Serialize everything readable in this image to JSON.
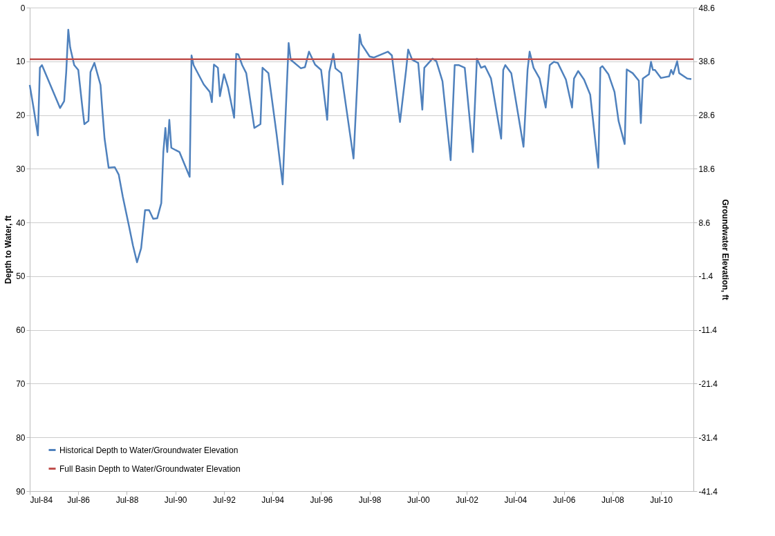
{
  "chart_data": {
    "type": "line",
    "xlabel": null,
    "ylabel": "Depth to Water, ft",
    "y2label": "Groundwater Elevation, ft",
    "xlim": [
      "1984-07",
      "2011-11"
    ],
    "xticks": [
      {
        "value": "1984-07",
        "label": "Jul-84"
      },
      {
        "value": "1986-07",
        "label": "Jul-86"
      },
      {
        "value": "1988-07",
        "label": "Jul-88"
      },
      {
        "value": "1990-07",
        "label": "Jul-90"
      },
      {
        "value": "1992-07",
        "label": "Jul-92"
      },
      {
        "value": "1994-07",
        "label": "Jul-94"
      },
      {
        "value": "1996-07",
        "label": "Jul-96"
      },
      {
        "value": "1998-07",
        "label": "Jul-98"
      },
      {
        "value": "2000-07",
        "label": "Jul-00"
      },
      {
        "value": "2002-07",
        "label": "Jul-02"
      },
      {
        "value": "2004-07",
        "label": "Jul-04"
      },
      {
        "value": "2006-07",
        "label": "Jul-06"
      },
      {
        "value": "2008-07",
        "label": "Jul-08"
      },
      {
        "value": "2010-07",
        "label": "Jul-10"
      }
    ],
    "ylim": [
      90,
      0
    ],
    "yticks": [
      0,
      10,
      20,
      30,
      40,
      50,
      60,
      70,
      80,
      90
    ],
    "y2lim": [
      -41.4,
      48.6
    ],
    "y2ticks": [
      48.6,
      38.6,
      28.6,
      18.6,
      8.6,
      -1.4,
      -11.4,
      -21.4,
      -31.4,
      -41.4
    ],
    "grid": "y",
    "legend": "bottom left",
    "marker": "none",
    "line_style": "solid",
    "series": [
      {
        "name": "Historical Depth to Water/Groundwater Elevation",
        "color": "#4f81bd",
        "x": [
          "1984-07",
          "1984-09",
          "1984-11",
          "1984-12",
          "1985-01",
          "1985-10",
          "1985-12",
          "1986-01",
          "1986-02",
          "1986-03",
          "1986-05",
          "1986-07",
          "1986-09",
          "1986-10",
          "1986-12",
          "1987-01",
          "1987-03",
          "1987-06",
          "1987-07",
          "1987-08",
          "1987-10",
          "1988-01",
          "1988-03",
          "1988-05",
          "1988-08",
          "1988-10",
          "1988-12",
          "1989-02",
          "1989-04",
          "1989-06",
          "1989-08",
          "1989-10",
          "1989-12",
          "1990-01",
          "1990-02",
          "1990-03",
          "1990-04",
          "1990-05",
          "1990-09",
          "1991-02",
          "1991-03",
          "1991-04",
          "1991-09",
          "1991-12",
          "1992-01",
          "1992-02",
          "1992-04",
          "1992-05",
          "1992-07",
          "1992-09",
          "1992-12",
          "1993-01",
          "1993-02",
          "1993-04",
          "1993-06",
          "1993-10",
          "1994-01",
          "1994-02",
          "1994-05",
          "1994-09",
          "1994-12",
          "1995-03",
          "1995-04",
          "1995-09",
          "1995-11",
          "1996-01",
          "1996-04",
          "1996-07",
          "1996-10",
          "1996-11",
          "1997-01",
          "1997-02",
          "1997-05",
          "1997-11",
          "1998-02",
          "1998-03",
          "1998-07",
          "1998-09",
          "1999-04",
          "1999-06",
          "1999-10",
          "2000-01",
          "2000-02",
          "2000-04",
          "2000-07",
          "2000-09",
          "2000-10",
          "2001-02",
          "2001-04",
          "2001-07",
          "2001-11",
          "2002-01",
          "2002-03",
          "2002-06",
          "2002-10",
          "2002-12",
          "2003-02",
          "2003-04",
          "2003-07",
          "2003-12",
          "2004-01",
          "2004-02",
          "2004-05",
          "2004-11",
          "2005-01",
          "2005-02",
          "2005-04",
          "2005-07",
          "2005-10",
          "2005-12",
          "2006-02",
          "2006-04",
          "2006-08",
          "2006-11",
          "2006-12",
          "2007-02",
          "2007-05",
          "2007-08",
          "2007-12",
          "2008-01",
          "2008-02",
          "2008-05",
          "2008-08",
          "2008-10",
          "2009-01",
          "2009-02",
          "2009-05",
          "2009-08",
          "2009-09",
          "2009-10",
          "2010-01",
          "2010-02",
          "2010-03",
          "2010-04",
          "2010-07",
          "2010-11",
          "2010-12",
          "2011-01",
          "2011-03",
          "2011-04",
          "2011-08",
          "2011-10"
        ],
        "values": [
          14.4,
          19.0,
          23.8,
          11.2,
          10.7,
          18.7,
          17.4,
          12.0,
          4.1,
          7.4,
          10.7,
          11.6,
          18.6,
          21.7,
          21.1,
          12.0,
          10.3,
          14.4,
          19.5,
          24.4,
          29.8,
          29.7,
          31.1,
          35.2,
          40.6,
          44.3,
          47.4,
          44.8,
          37.7,
          37.7,
          39.3,
          39.2,
          36.4,
          26.9,
          22.4,
          26.9,
          20.9,
          26.1,
          26.9,
          31.5,
          8.9,
          10.7,
          14.3,
          15.7,
          17.6,
          10.6,
          11.2,
          16.5,
          12.4,
          14.9,
          20.5,
          8.6,
          8.7,
          10.7,
          12.2,
          22.4,
          21.7,
          11.2,
          12.2,
          23.6,
          32.9,
          6.6,
          9.7,
          11.3,
          11.1,
          8.2,
          10.6,
          11.6,
          20.9,
          12.0,
          8.6,
          11.3,
          12.2,
          28.1,
          5.0,
          6.8,
          9.1,
          9.3,
          8.2,
          8.9,
          21.3,
          11.6,
          7.8,
          9.7,
          10.3,
          19.0,
          11.2,
          9.5,
          10.0,
          13.7,
          28.4,
          10.7,
          10.7,
          11.2,
          26.9,
          9.5,
          11.2,
          10.9,
          13.2,
          24.4,
          11.6,
          10.7,
          12.2,
          25.9,
          11.6,
          8.2,
          11.2,
          13.2,
          18.6,
          10.7,
          10.1,
          10.3,
          13.4,
          18.6,
          13.2,
          11.8,
          13.4,
          16.2,
          29.8,
          11.2,
          10.9,
          12.4,
          15.7,
          21.1,
          25.4,
          11.5,
          12.2,
          13.6,
          21.5,
          13.2,
          12.4,
          10.1,
          11.6,
          11.6,
          13.1,
          12.8,
          11.6,
          12.4,
          10.0,
          12.2,
          13.2,
          13.3
        ]
      },
      {
        "name": "Full Basin Depth to Water/Groundwater Elevation",
        "color": "#c0504d",
        "x": [
          "1984-07",
          "2011-11"
        ],
        "values": [
          9.6,
          9.6
        ]
      }
    ]
  }
}
